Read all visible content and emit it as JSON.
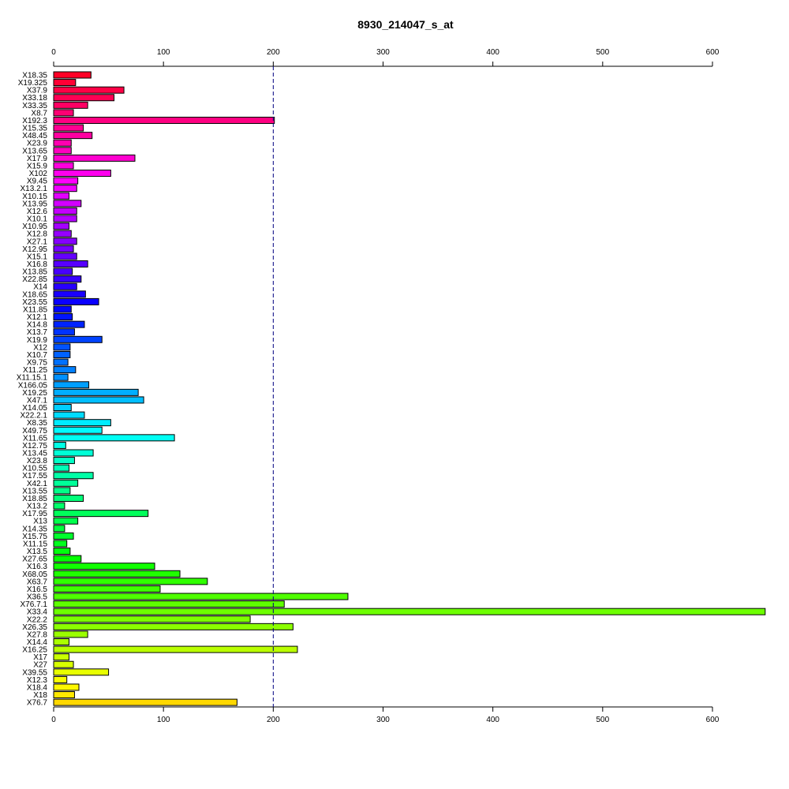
{
  "chart_data": {
    "type": "bar",
    "orientation": "horizontal",
    "title": "8930_214047_s_at",
    "xlabel": "",
    "ylabel": "",
    "xlim": [
      0,
      650
    ],
    "x_ticks": [
      0,
      100,
      200,
      300,
      400,
      500,
      600
    ],
    "reference_line": 200,
    "grid": false,
    "categories": [
      "X18.35",
      "X19.325",
      "X37.9",
      "X33.18",
      "X33.35",
      "X8.7",
      "X192.3",
      "X15.35",
      "X48.45",
      "X23.9",
      "X13.65",
      "X17.9",
      "X15.9",
      "X102",
      "X9.45",
      "X13.2.1",
      "X10.15",
      "X13.95",
      "X12.6",
      "X10.1",
      "X10.95",
      "X12.8",
      "X27.1",
      "X12.95",
      "X15.1",
      "X16.8",
      "X13.85",
      "X22.85",
      "X14",
      "X18.65",
      "X23.55",
      "X11.85",
      "X12.1",
      "X14.8",
      "X13.7",
      "X19.9",
      "X12",
      "X10.7",
      "X9.75",
      "X11.25",
      "X11.15.1",
      "X166.05",
      "X19.25",
      "X47.1",
      "X14.05",
      "X22.2.1",
      "X8.35",
      "X49.75",
      "X11.65",
      "X12.75",
      "X13.45",
      "X23.8",
      "X10.55",
      "X17.55",
      "X42.1",
      "X13.55",
      "X18.85",
      "X13.2",
      "X17.95",
      "X13",
      "X14.35",
      "X15.75",
      "X11.15",
      "X13.5",
      "X27.65",
      "X16.3",
      "X68.05",
      "X63.7",
      "X16.5",
      "X36.5",
      "X76.7.1",
      "X33.4",
      "X22.2",
      "X26.35",
      "X27.8",
      "X14.4",
      "X16.25",
      "X17",
      "X27",
      "X39.55",
      "X12.3",
      "X18.4",
      "X18",
      "X76.7"
    ],
    "values": [
      34,
      20,
      64,
      55,
      31,
      18,
      201,
      27,
      35,
      16,
      16,
      74,
      18,
      52,
      22,
      21,
      14,
      25,
      21,
      21,
      14,
      16,
      21,
      18,
      21,
      31,
      17,
      25,
      21,
      29,
      41,
      16,
      17,
      28,
      19,
      44,
      15,
      15,
      13,
      20,
      13,
      32,
      77,
      82,
      16,
      28,
      52,
      44,
      110,
      11,
      36,
      19,
      14,
      36,
      22,
      15,
      27,
      10,
      86,
      22,
      10,
      18,
      12,
      15,
      25,
      92,
      115,
      140,
      97,
      268,
      210,
      648,
      179,
      218,
      31,
      14,
      222,
      14,
      18,
      50,
      12,
      23,
      19,
      167
    ],
    "colors": [
      "#FF0026",
      "#FF0035",
      "#FF0045",
      "#FF0054",
      "#FF0063",
      "#FF0073",
      "#FF0082",
      "#FF0091",
      "#FF00A1",
      "#FF00B0",
      "#FF00C0",
      "#FF00CF",
      "#FF00DE",
      "#FF00EE",
      "#FF00FD",
      "#F100FF",
      "#E100FF",
      "#D200FF",
      "#C300FF",
      "#B300FF",
      "#A400FF",
      "#9500FF",
      "#8500FF",
      "#7600FF",
      "#6600FF",
      "#5700FF",
      "#4800FF",
      "#3800FF",
      "#2900FF",
      "#1A00FF",
      "#0A00FF",
      "#0005FF",
      "#0015FF",
      "#0024FF",
      "#0033FF",
      "#0043FF",
      "#0052FF",
      "#0062FF",
      "#0071FF",
      "#0080FF",
      "#0090FF",
      "#009FFF",
      "#00AEFF",
      "#00BEFF",
      "#00CDFF",
      "#00DCFF",
      "#00ECFF",
      "#00FBFF",
      "#00FFF4",
      "#00FFE5",
      "#00FFD6",
      "#00FFC6",
      "#00FFB7",
      "#00FFA7",
      "#00FF98",
      "#00FF89",
      "#00FF79",
      "#00FF6A",
      "#00FF5B",
      "#00FF4B",
      "#00FF3C",
      "#00FF2D",
      "#00FF1D",
      "#00FF0E",
      "#02FF00",
      "#11FF00",
      "#20FF00",
      "#30FF00",
      "#3FFF00",
      "#4FFF00",
      "#5EFF00",
      "#6DFF00",
      "#7DFF00",
      "#8CFF00",
      "#9BFF00",
      "#ABFF00",
      "#BAFF00",
      "#C9FF00",
      "#D9FF00",
      "#E8FF00",
      "#F8FF00",
      "#FFF700",
      "#FFE800",
      "#FFD800"
    ]
  }
}
